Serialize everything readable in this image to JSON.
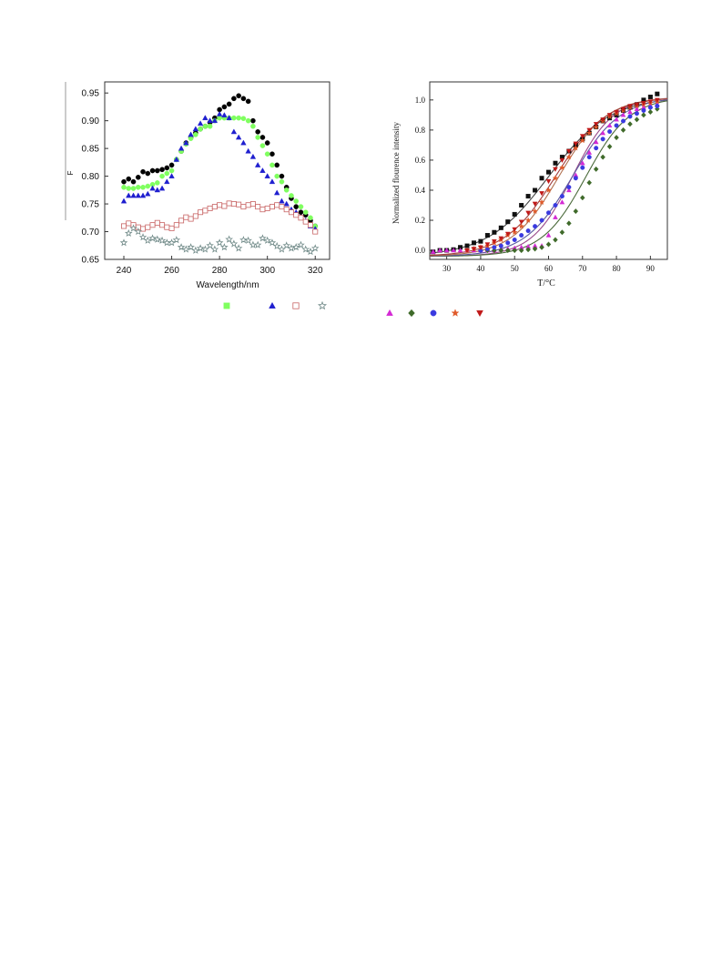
{
  "chart_data": [
    {
      "type": "scatter",
      "title": "",
      "xlabel": "Wavelength/nm",
      "ylabel": "F",
      "xlim": [
        232,
        326
      ],
      "ylim": [
        0.65,
        0.97
      ],
      "xticks": [
        240,
        260,
        280,
        300,
        320
      ],
      "yticks": [
        0.65,
        0.7,
        0.75,
        0.8,
        0.85,
        0.9,
        0.95
      ],
      "grid": false,
      "legend": "below (markers only)",
      "series": [
        {
          "marker": "circle",
          "filled": true,
          "color": "#000000",
          "x": [
            240,
            242,
            244,
            246,
            248,
            250,
            252,
            254,
            256,
            258,
            260,
            262,
            264,
            266,
            268,
            270,
            272,
            274,
            276,
            278,
            280,
            282,
            284,
            286,
            288,
            290,
            292,
            294,
            296,
            298,
            300,
            302,
            304,
            306,
            308,
            310,
            312,
            314,
            316,
            318,
            320
          ],
          "y": [
            0.79,
            0.795,
            0.79,
            0.798,
            0.808,
            0.805,
            0.81,
            0.81,
            0.812,
            0.815,
            0.82,
            0.83,
            0.845,
            0.86,
            0.87,
            0.878,
            0.885,
            0.89,
            0.897,
            0.905,
            0.92,
            0.925,
            0.93,
            0.94,
            0.945,
            0.94,
            0.935,
            0.9,
            0.88,
            0.87,
            0.86,
            0.84,
            0.82,
            0.8,
            0.78,
            0.76,
            0.745,
            0.735,
            0.73,
            0.72,
            0.71
          ]
        },
        {
          "marker": "circle",
          "filled": true,
          "color": "#7fff5f",
          "x": [
            240,
            242,
            244,
            246,
            248,
            250,
            252,
            254,
            256,
            258,
            260,
            262,
            264,
            266,
            268,
            270,
            272,
            274,
            276,
            278,
            280,
            282,
            284,
            286,
            288,
            290,
            292,
            294,
            296,
            298,
            300,
            302,
            304,
            306,
            308,
            310,
            312,
            314,
            316,
            318,
            320
          ],
          "y": [
            0.78,
            0.778,
            0.778,
            0.78,
            0.78,
            0.782,
            0.785,
            0.788,
            0.8,
            0.805,
            0.81,
            0.83,
            0.845,
            0.858,
            0.868,
            0.875,
            0.885,
            0.89,
            0.89,
            0.9,
            0.905,
            0.905,
            0.905,
            0.905,
            0.905,
            0.904,
            0.9,
            0.89,
            0.87,
            0.855,
            0.84,
            0.82,
            0.8,
            0.79,
            0.775,
            0.765,
            0.755,
            0.745,
            0.735,
            0.725,
            0.71
          ]
        },
        {
          "marker": "triangle",
          "filled": true,
          "color": "#1f1fcf",
          "x": [
            240,
            242,
            244,
            246,
            248,
            250,
            252,
            254,
            256,
            258,
            260,
            262,
            264,
            266,
            268,
            270,
            272,
            274,
            276,
            278,
            280,
            282,
            284,
            286,
            288,
            290,
            292,
            294,
            296,
            298,
            300,
            302,
            304,
            306,
            308,
            310,
            312,
            314,
            316,
            318,
            320
          ],
          "y": [
            0.755,
            0.765,
            0.765,
            0.765,
            0.765,
            0.768,
            0.778,
            0.775,
            0.778,
            0.79,
            0.8,
            0.83,
            0.85,
            0.86,
            0.875,
            0.885,
            0.895,
            0.905,
            0.9,
            0.9,
            0.912,
            0.91,
            0.905,
            0.88,
            0.87,
            0.86,
            0.845,
            0.835,
            0.82,
            0.81,
            0.8,
            0.79,
            0.77,
            0.755,
            0.75,
            0.74,
            0.735,
            0.725,
            0.72,
            0.71,
            0.705
          ]
        },
        {
          "marker": "square",
          "filled": false,
          "color": "#c86464",
          "x": [
            240,
            242,
            244,
            246,
            248,
            250,
            252,
            254,
            256,
            258,
            260,
            262,
            264,
            266,
            268,
            270,
            272,
            274,
            276,
            278,
            280,
            282,
            284,
            286,
            288,
            290,
            292,
            294,
            296,
            298,
            300,
            302,
            304,
            306,
            308,
            310,
            312,
            314,
            316,
            318,
            320
          ],
          "y": [
            0.71,
            0.715,
            0.712,
            0.708,
            0.705,
            0.708,
            0.712,
            0.716,
            0.712,
            0.708,
            0.706,
            0.712,
            0.72,
            0.726,
            0.723,
            0.728,
            0.735,
            0.738,
            0.742,
            0.745,
            0.748,
            0.746,
            0.751,
            0.75,
            0.749,
            0.745,
            0.748,
            0.75,
            0.745,
            0.74,
            0.742,
            0.745,
            0.748,
            0.745,
            0.74,
            0.735,
            0.73,
            0.725,
            0.718,
            0.712,
            0.7
          ]
        },
        {
          "marker": "star",
          "filled": false,
          "color": "#708a88",
          "x": [
            240,
            242,
            244,
            246,
            248,
            250,
            252,
            254,
            256,
            258,
            260,
            262,
            264,
            266,
            268,
            270,
            272,
            274,
            276,
            278,
            280,
            282,
            284,
            286,
            288,
            290,
            292,
            294,
            296,
            298,
            300,
            302,
            304,
            306,
            308,
            310,
            312,
            314,
            316,
            318,
            320
          ],
          "y": [
            0.68,
            0.697,
            0.706,
            0.7,
            0.69,
            0.684,
            0.688,
            0.686,
            0.684,
            0.68,
            0.68,
            0.685,
            0.672,
            0.668,
            0.672,
            0.666,
            0.67,
            0.668,
            0.675,
            0.668,
            0.68,
            0.672,
            0.686,
            0.678,
            0.67,
            0.685,
            0.684,
            0.676,
            0.676,
            0.688,
            0.684,
            0.68,
            0.674,
            0.668,
            0.675,
            0.67,
            0.672,
            0.676,
            0.668,
            0.664,
            0.67
          ]
        }
      ]
    },
    {
      "type": "scatter",
      "title": "",
      "xlabel": "T/°C",
      "ylabel": "Normalized flourence intensity",
      "xlim": [
        25,
        95
      ],
      "ylim": [
        -0.06,
        1.12
      ],
      "xticks": [
        30,
        40,
        50,
        60,
        70,
        80,
        90
      ],
      "yticks": [
        0.0,
        0.2,
        0.4,
        0.6,
        0.8,
        1.0
      ],
      "grid": false,
      "legend": "below (markers only)",
      "fit_curves": "sigmoid",
      "series": [
        {
          "marker": "square",
          "filled": true,
          "color": "#111111",
          "curve_color": "#444444",
          "tm": 60,
          "width": 9,
          "x": [
            26,
            28,
            30,
            32,
            34,
            36,
            38,
            40,
            42,
            44,
            46,
            48,
            50,
            52,
            54,
            56,
            58,
            60,
            62,
            64,
            66,
            68,
            70,
            72,
            74,
            76,
            78,
            80,
            82,
            84,
            86,
            88,
            90,
            92
          ],
          "y": [
            -0.01,
            0.0,
            0.0,
            0.005,
            0.02,
            0.03,
            0.05,
            0.06,
            0.1,
            0.12,
            0.15,
            0.19,
            0.24,
            0.3,
            0.36,
            0.4,
            0.48,
            0.52,
            0.58,
            0.62,
            0.66,
            0.7,
            0.74,
            0.78,
            0.82,
            0.86,
            0.88,
            0.9,
            0.93,
            0.95,
            0.97,
            1.0,
            1.02,
            1.04
          ]
        },
        {
          "marker": "triangle",
          "filled": true,
          "color": "#d42ad4",
          "curve_color": "#9a4a8a",
          "tm": 67,
          "width": 6,
          "x": [
            26,
            28,
            30,
            32,
            34,
            36,
            38,
            40,
            42,
            44,
            46,
            48,
            50,
            52,
            54,
            56,
            58,
            60,
            62,
            64,
            66,
            68,
            70,
            72,
            74,
            76,
            78,
            80,
            82,
            84,
            86,
            88,
            90,
            92
          ],
          "y": [
            -0.01,
            0.0,
            0.0,
            0.0,
            0.0,
            0.0,
            0.0,
            0.0,
            0.0,
            0.0,
            0.01,
            0.01,
            0.015,
            0.02,
            0.025,
            0.03,
            0.03,
            0.1,
            0.22,
            0.32,
            0.4,
            0.5,
            0.58,
            0.65,
            0.72,
            0.78,
            0.83,
            0.87,
            0.9,
            0.92,
            0.94,
            0.95,
            0.96,
            0.97
          ]
        },
        {
          "marker": "diamond",
          "filled": true,
          "color": "#3f6a2a",
          "curve_color": "#4a6a3a",
          "tm": 71,
          "width": 6.5,
          "x": [
            40,
            42,
            44,
            46,
            48,
            50,
            52,
            54,
            56,
            58,
            60,
            62,
            64,
            66,
            68,
            70,
            72,
            74,
            76,
            78,
            80,
            82,
            84,
            86,
            88,
            90,
            92
          ],
          "y": [
            0.0,
            0.0,
            0.0,
            0.0,
            0.0,
            0.0,
            0.0,
            0.005,
            0.01,
            0.02,
            0.04,
            0.07,
            0.12,
            0.18,
            0.26,
            0.35,
            0.45,
            0.54,
            0.62,
            0.69,
            0.75,
            0.8,
            0.84,
            0.87,
            0.9,
            0.92,
            0.94
          ]
        },
        {
          "marker": "circle",
          "filled": true,
          "color": "#3a3ae0",
          "curve_color": "#5a5aa0",
          "tm": 67,
          "width": 7,
          "x": [
            40,
            42,
            44,
            46,
            48,
            50,
            52,
            54,
            56,
            58,
            60,
            62,
            64,
            66,
            68,
            70,
            72,
            74,
            76,
            78,
            80,
            82,
            84,
            86,
            88,
            90,
            92
          ],
          "y": [
            0.0,
            0.01,
            0.02,
            0.03,
            0.05,
            0.07,
            0.1,
            0.13,
            0.16,
            0.2,
            0.25,
            0.3,
            0.36,
            0.42,
            0.48,
            0.55,
            0.62,
            0.68,
            0.74,
            0.79,
            0.83,
            0.86,
            0.89,
            0.91,
            0.93,
            0.95,
            0.96
          ]
        },
        {
          "marker": "star",
          "filled": true,
          "color": "#e05a2a",
          "curve_color": "#b07050",
          "tm": 63,
          "width": 7,
          "x": [
            36,
            38,
            40,
            42,
            44,
            46,
            48,
            50,
            52,
            54,
            56,
            58,
            60,
            62,
            64,
            66,
            68,
            70,
            72,
            74,
            76,
            78,
            80,
            82,
            84,
            86,
            88,
            90,
            92
          ],
          "y": [
            0.0,
            0.01,
            0.02,
            0.03,
            0.05,
            0.07,
            0.1,
            0.12,
            0.16,
            0.2,
            0.26,
            0.32,
            0.4,
            0.48,
            0.55,
            0.62,
            0.68,
            0.73,
            0.78,
            0.82,
            0.86,
            0.89,
            0.91,
            0.93,
            0.95,
            0.96,
            0.97,
            0.98,
            0.99
          ]
        },
        {
          "marker": "triangle-down",
          "filled": true,
          "color": "#c01818",
          "curve_color": "#a04040",
          "tm": 62,
          "width": 7.5,
          "x": [
            36,
            38,
            40,
            42,
            44,
            46,
            48,
            50,
            52,
            54,
            56,
            58,
            60,
            62,
            64,
            66,
            68,
            70,
            72,
            74,
            76,
            78,
            80,
            82,
            84,
            86,
            88,
            90,
            92
          ],
          "y": [
            0.0,
            0.01,
            0.02,
            0.04,
            0.06,
            0.08,
            0.11,
            0.14,
            0.19,
            0.25,
            0.31,
            0.38,
            0.46,
            0.54,
            0.6,
            0.66,
            0.71,
            0.76,
            0.8,
            0.84,
            0.87,
            0.9,
            0.92,
            0.94,
            0.96,
            0.97,
            0.98,
            0.99,
            1.0
          ]
        }
      ]
    }
  ],
  "legends": {
    "left": [
      {
        "marker": "square",
        "filled": true,
        "color": "#7fff5f"
      },
      {
        "marker": "triangle",
        "filled": true,
        "color": "#1f1fcf"
      },
      {
        "marker": "square",
        "filled": false,
        "color": "#c86464"
      },
      {
        "marker": "star",
        "filled": false,
        "color": "#708a88"
      }
    ],
    "right": [
      {
        "marker": "triangle",
        "filled": true,
        "color": "#d42ad4"
      },
      {
        "marker": "diamond",
        "filled": true,
        "color": "#3f6a2a"
      },
      {
        "marker": "circle",
        "filled": true,
        "color": "#3a3ae0"
      },
      {
        "marker": "star",
        "filled": true,
        "color": "#e05a2a"
      },
      {
        "marker": "triangle-down",
        "filled": true,
        "color": "#c01818"
      }
    ]
  }
}
